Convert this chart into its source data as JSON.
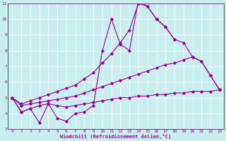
{
  "xlabel": "Windchill (Refroidissement éolien,°C)",
  "xlim": [
    -0.5,
    23.5
  ],
  "ylim": [
    3,
    11
  ],
  "xticks": [
    0,
    1,
    2,
    3,
    4,
    5,
    6,
    7,
    8,
    9,
    10,
    11,
    12,
    13,
    14,
    15,
    16,
    17,
    18,
    19,
    20,
    21,
    22,
    23
  ],
  "yticks": [
    3,
    4,
    5,
    6,
    7,
    8,
    9,
    10,
    11
  ],
  "background_color": "#c8eef0",
  "line_color": "#990099",
  "grid_color": "#ffffff",
  "line1_x": [
    0,
    1,
    2,
    3,
    4,
    5,
    6,
    7,
    8,
    9,
    10,
    11,
    12,
    13,
    14,
    15,
    16,
    17,
    18
  ],
  "line1_y": [
    5.0,
    4.1,
    4.3,
    3.4,
    4.6,
    3.7,
    3.5,
    4.0,
    4.1,
    4.5,
    8.0,
    10.0,
    8.4,
    8.0,
    11.2,
    10.8,
    10.0,
    9.5,
    8.7
  ],
  "line2_x": [
    0,
    1,
    2,
    3,
    4,
    5,
    6,
    7,
    8,
    9,
    10,
    11,
    12,
    13,
    14,
    15,
    16,
    17,
    18,
    19,
    20,
    21,
    22,
    23
  ],
  "line2_y": [
    5.0,
    4.1,
    4.3,
    4.5,
    4.6,
    4.5,
    4.4,
    4.5,
    4.6,
    4.7,
    4.8,
    4.9,
    5.0,
    5.0,
    5.1,
    5.1,
    5.2,
    5.2,
    5.3,
    5.3,
    5.4,
    5.4,
    5.4,
    5.5
  ],
  "line3_x": [
    0,
    1,
    2,
    3,
    4,
    5,
    6,
    7,
    8,
    9,
    10,
    11,
    12,
    13,
    14,
    15,
    16,
    17,
    18,
    19,
    20,
    21,
    22,
    23
  ],
  "line3_y": [
    5.0,
    4.5,
    4.6,
    4.7,
    4.8,
    4.9,
    5.0,
    5.1,
    5.3,
    5.5,
    5.7,
    5.9,
    6.1,
    6.3,
    6.5,
    6.7,
    6.9,
    7.1,
    7.2,
    7.4,
    7.6,
    7.3,
    6.4,
    5.5
  ],
  "line4_x": [
    0,
    1,
    2,
    3,
    4,
    5,
    6,
    7,
    8,
    9,
    10,
    11,
    12,
    13,
    14,
    15,
    16,
    17,
    18,
    19,
    20,
    21,
    22,
    23
  ],
  "line4_y": [
    5.0,
    4.6,
    4.8,
    5.0,
    5.2,
    5.4,
    5.6,
    5.8,
    6.2,
    6.6,
    7.2,
    7.8,
    8.5,
    9.3,
    11.0,
    10.8,
    10.0,
    9.5,
    8.7,
    8.5,
    7.6,
    7.3,
    6.4,
    5.5
  ]
}
